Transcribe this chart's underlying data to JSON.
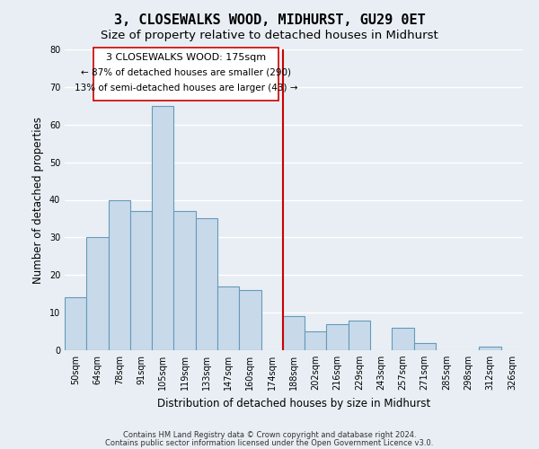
{
  "title": "3, CLOSEWALKS WOOD, MIDHURST, GU29 0ET",
  "subtitle": "Size of property relative to detached houses in Midhurst",
  "xlabel": "Distribution of detached houses by size in Midhurst",
  "ylabel": "Number of detached properties",
  "bar_labels": [
    "50sqm",
    "64sqm",
    "78sqm",
    "91sqm",
    "105sqm",
    "119sqm",
    "133sqm",
    "147sqm",
    "160sqm",
    "174sqm",
    "188sqm",
    "202sqm",
    "216sqm",
    "229sqm",
    "243sqm",
    "257sqm",
    "271sqm",
    "285sqm",
    "298sqm",
    "312sqm",
    "326sqm"
  ],
  "bar_heights": [
    14,
    30,
    40,
    37,
    65,
    37,
    35,
    17,
    16,
    0,
    9,
    5,
    7,
    8,
    0,
    6,
    2,
    0,
    0,
    1,
    0
  ],
  "bar_color": "#c8daea",
  "bar_edge_color": "#6699bb",
  "ylim": [
    0,
    80
  ],
  "yticks": [
    0,
    10,
    20,
    30,
    40,
    50,
    60,
    70,
    80
  ],
  "vline_x": 9.5,
  "vline_color": "#cc0000",
  "annotation_title": "3 CLOSEWALKS WOOD: 175sqm",
  "annotation_line1": "← 87% of detached houses are smaller (290)",
  "annotation_line2": "13% of semi-detached houses are larger (43) →",
  "footer_line1": "Contains HM Land Registry data © Crown copyright and database right 2024.",
  "footer_line2": "Contains public sector information licensed under the Open Government Licence v3.0.",
  "background_color": "#e8eef4",
  "plot_background_color": "#e8eef4",
  "grid_color": "#ffffff",
  "title_fontsize": 11,
  "subtitle_fontsize": 9.5,
  "label_fontsize": 8.5,
  "tick_fontsize": 7,
  "annotation_fontsize": 8,
  "footer_fontsize": 6
}
